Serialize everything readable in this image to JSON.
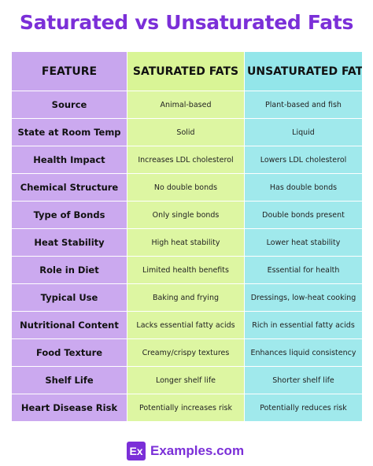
{
  "title": "Saturated vs Unsaturated Fats",
  "table": {
    "headers": [
      "FEATURE",
      "SATURATED FATS",
      "UNSATURATED FATS"
    ],
    "rows": [
      [
        "Source",
        "Animal-based",
        "Plant-based and fish"
      ],
      [
        "State at Room Temp",
        "Solid",
        "Liquid"
      ],
      [
        "Health Impact",
        "Increases LDL cholesterol",
        "Lowers LDL cholesterol"
      ],
      [
        "Chemical Structure",
        "No double bonds",
        "Has double bonds"
      ],
      [
        "Type of Bonds",
        "Only single bonds",
        "Double bonds present"
      ],
      [
        "Heat Stability",
        "High heat stability",
        "Lower heat stability"
      ],
      [
        "Role in Diet",
        "Limited health benefits",
        "Essential for health"
      ],
      [
        "Typical Use",
        "Baking and frying",
        "Dressings, low-heat cooking"
      ],
      [
        "Nutritional Content",
        "Lacks essential fatty acids",
        "Rich in essential fatty acids"
      ],
      [
        "Food Texture",
        "Creamy/crispy textures",
        "Enhances liquid consistency"
      ],
      [
        "Shelf Life",
        "Longer shelf life",
        "Shorter shelf life"
      ],
      [
        "Heart Disease Risk",
        "Potentially increases risk",
        "Potentially reduces risk"
      ]
    ]
  },
  "brand": {
    "logo_text": "Ex",
    "name": "Examples.com"
  },
  "colors": {
    "accent": "#7b2fd8",
    "feature_column": "#cba9ef",
    "saturated_column": "#ddf6a2",
    "unsaturated_column": "#a0e9ec"
  }
}
